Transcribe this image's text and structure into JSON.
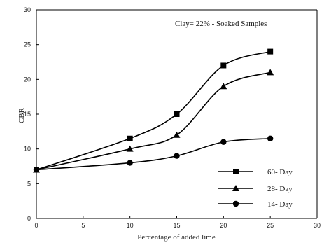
{
  "chart_data": {
    "type": "line",
    "title": "",
    "annotation": "Clay= 22% - Soaked Samples",
    "xlabel": "Percentage of added lime",
    "ylabel": "CBR",
    "xlim": [
      0,
      30
    ],
    "ylim": [
      0,
      30
    ],
    "xticks": [
      0,
      5,
      10,
      15,
      20,
      25,
      30
    ],
    "yticks": [
      0,
      5,
      10,
      15,
      20,
      25,
      30
    ],
    "grid": false,
    "legend_position": "bottom-right",
    "x": [
      0,
      10,
      15,
      20,
      25
    ],
    "series": [
      {
        "name": "60- Day",
        "marker": "square",
        "values": [
          7,
          11.5,
          15,
          22,
          24
        ]
      },
      {
        "name": "28- Day",
        "marker": "triangle",
        "values": [
          7,
          10,
          12,
          19,
          21
        ]
      },
      {
        "name": "14- Day",
        "marker": "circle",
        "values": [
          7,
          8,
          9,
          11,
          11.5
        ]
      }
    ],
    "colors": {
      "line": "#000000",
      "axis": "#000000"
    }
  }
}
